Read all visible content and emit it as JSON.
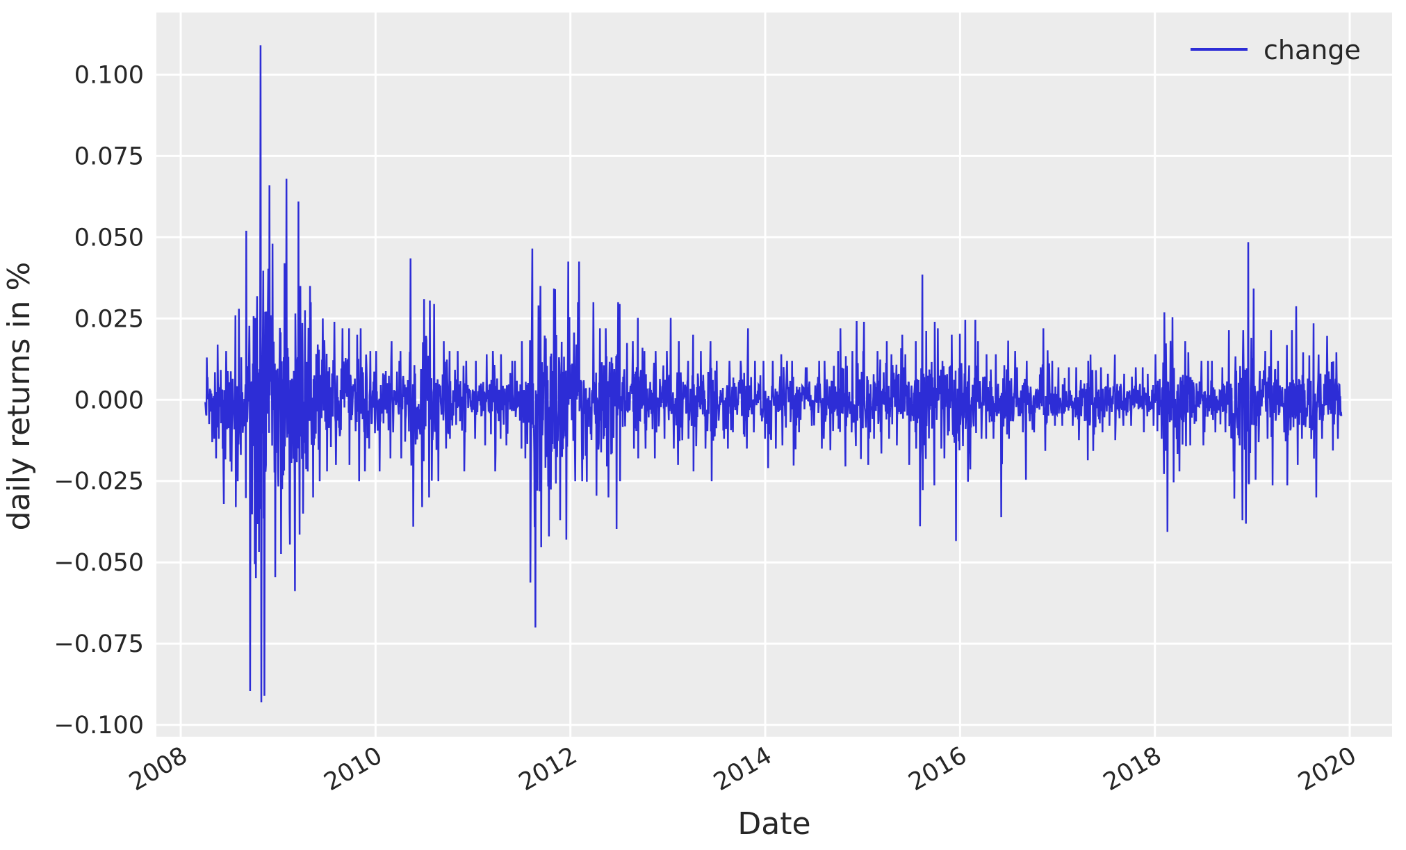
{
  "figure": {
    "background": "#ffffff"
  },
  "axes": {
    "background": "#ececec",
    "grid_color": "#ffffff",
    "text_color": "#262626",
    "xlabel": "Date",
    "ylabel": "daily returns in %",
    "x_tick_labels": [
      "2008",
      "2010",
      "2012",
      "2014",
      "2016",
      "2018",
      "2020"
    ],
    "y_tick_labels": [
      "0.100",
      "0.075",
      "0.050",
      "0.025",
      "0.000",
      "−0.025",
      "−0.050",
      "−0.075",
      "−0.100"
    ],
    "x_tick_rotation_deg": 30
  },
  "legend": {
    "label": "change",
    "line_color": "#2d2dd6",
    "position": "upper right"
  },
  "chart_data": {
    "type": "line",
    "series_name": "change",
    "title": "",
    "xlabel": "Date",
    "ylabel": "daily returns in %",
    "line_color": "#2d2dd6",
    "grid": true,
    "legend_position": "upper right",
    "x_tick_years": [
      2008,
      2010,
      2012,
      2014,
      2016,
      2018,
      2020
    ],
    "y_tick_values": [
      0.1,
      0.075,
      0.05,
      0.025,
      0.0,
      -0.025,
      -0.05,
      -0.075,
      -0.1
    ],
    "xlim_years": [
      2007.75,
      2020.435
    ],
    "ylim": [
      -0.1036,
      0.1191
    ],
    "data_start": "2008-04",
    "data_end": "2019-11",
    "observed_max": 0.109,
    "observed_min": -0.093,
    "monthly_envelope": {
      "note": "Per-month maximum and minimum daily return read from the plot; the series oscillates densely around 0 within this envelope.",
      "columns": [
        "month",
        "max_daily_return",
        "min_daily_return"
      ],
      "rows": [
        [
          "2008-04",
          0.013,
          -0.013
        ],
        [
          "2008-05",
          0.017,
          -0.018
        ],
        [
          "2008-06",
          0.015,
          -0.032
        ],
        [
          "2008-07",
          0.026,
          -0.033
        ],
        [
          "2008-08",
          0.028,
          -0.025
        ],
        [
          "2008-09",
          0.052,
          -0.0895
        ],
        [
          "2008-10",
          0.109,
          -0.093
        ],
        [
          "2008-11",
          0.066,
          -0.091
        ],
        [
          "2008-12",
          0.048,
          -0.0545
        ],
        [
          "2009-01",
          0.042,
          -0.0474
        ],
        [
          "2009-02",
          0.068,
          -0.0445
        ],
        [
          "2009-03",
          0.061,
          -0.0588
        ],
        [
          "2009-04",
          0.035,
          -0.035
        ],
        [
          "2009-05",
          0.03,
          -0.03
        ],
        [
          "2009-06",
          0.025,
          -0.025
        ],
        [
          "2009-07",
          0.024,
          -0.022
        ],
        [
          "2009-08",
          0.022,
          -0.02
        ],
        [
          "2009-09",
          0.022,
          -0.02
        ],
        [
          "2009-10",
          0.02,
          -0.025
        ],
        [
          "2009-11",
          0.022,
          -0.022
        ],
        [
          "2009-12",
          0.015,
          -0.015
        ],
        [
          "2010-01",
          0.015,
          -0.022
        ],
        [
          "2010-02",
          0.018,
          -0.018
        ],
        [
          "2010-03",
          0.012,
          -0.01
        ],
        [
          "2010-04",
          0.015,
          -0.018
        ],
        [
          "2010-05",
          0.0435,
          -0.039
        ],
        [
          "2010-06",
          0.031,
          -0.033
        ],
        [
          "2010-07",
          0.0305,
          -0.03
        ],
        [
          "2010-08",
          0.0295,
          -0.025
        ],
        [
          "2010-09",
          0.018,
          -0.015
        ],
        [
          "2010-10",
          0.015,
          -0.012
        ],
        [
          "2010-11",
          0.015,
          -0.022
        ],
        [
          "2010-12",
          0.012,
          -0.01
        ],
        [
          "2011-01",
          0.012,
          -0.012
        ],
        [
          "2011-02",
          0.014,
          -0.014
        ],
        [
          "2011-03",
          0.015,
          -0.022
        ],
        [
          "2011-04",
          0.014,
          -0.012
        ],
        [
          "2011-05",
          0.012,
          -0.014
        ],
        [
          "2011-06",
          0.012,
          -0.015
        ],
        [
          "2011-07",
          0.018,
          -0.018
        ],
        [
          "2011-08",
          0.0465,
          -0.07
        ],
        [
          "2011-09",
          0.035,
          -0.0453
        ],
        [
          "2011-10",
          0.0342,
          -0.042
        ],
        [
          "2011-11",
          0.034,
          -0.037
        ],
        [
          "2011-12",
          0.0425,
          -0.043
        ],
        [
          "2012-01",
          0.03,
          -0.025
        ],
        [
          "2012-02",
          0.0425,
          -0.025
        ],
        [
          "2012-03",
          0.03,
          -0.0252
        ],
        [
          "2012-04",
          0.022,
          -0.0295
        ],
        [
          "2012-05",
          0.022,
          -0.03
        ],
        [
          "2012-06",
          0.03,
          -0.0397
        ],
        [
          "2012-07",
          0.0295,
          -0.025
        ],
        [
          "2012-08",
          0.018,
          -0.015
        ],
        [
          "2012-09",
          0.0252,
          -0.018
        ],
        [
          "2012-10",
          0.015,
          -0.015
        ],
        [
          "2012-11",
          0.015,
          -0.018
        ],
        [
          "2012-12",
          0.015,
          -0.012
        ],
        [
          "2013-01",
          0.0252,
          -0.015
        ],
        [
          "2013-02",
          0.018,
          -0.02
        ],
        [
          "2013-03",
          0.012,
          -0.012
        ],
        [
          "2013-04",
          0.02,
          -0.022
        ],
        [
          "2013-05",
          0.015,
          -0.015
        ],
        [
          "2013-06",
          0.018,
          -0.025
        ],
        [
          "2013-07",
          0.012,
          -0.012
        ],
        [
          "2013-08",
          0.012,
          -0.015
        ],
        [
          "2013-09",
          0.012,
          -0.01
        ],
        [
          "2013-10",
          0.022,
          -0.015
        ],
        [
          "2013-11",
          0.012,
          -0.01
        ],
        [
          "2013-12",
          0.012,
          -0.012
        ],
        [
          "2014-01",
          0.012,
          -0.021
        ],
        [
          "2014-02",
          0.014,
          -0.015
        ],
        [
          "2014-03",
          0.012,
          -0.014
        ],
        [
          "2014-04",
          0.012,
          -0.0202
        ],
        [
          "2014-05",
          0.01,
          -0.01
        ],
        [
          "2014-06",
          0.01,
          -0.008
        ],
        [
          "2014-07",
          0.012,
          -0.015
        ],
        [
          "2014-08",
          0.012,
          -0.012
        ],
        [
          "2014-09",
          0.015,
          -0.0155
        ],
        [
          "2014-10",
          0.022,
          -0.0205
        ],
        [
          "2014-11",
          0.015,
          -0.01
        ],
        [
          "2014-12",
          0.0242,
          -0.0182
        ],
        [
          "2015-01",
          0.024,
          -0.02
        ],
        [
          "2015-02",
          0.015,
          -0.012
        ],
        [
          "2015-03",
          0.018,
          -0.0165
        ],
        [
          "2015-04",
          0.014,
          -0.012
        ],
        [
          "2015-05",
          0.02,
          -0.014
        ],
        [
          "2015-06",
          0.014,
          -0.02
        ],
        [
          "2015-07",
          0.018,
          -0.015
        ],
        [
          "2015-08",
          0.0385,
          -0.0389
        ],
        [
          "2015-09",
          0.024,
          -0.0263
        ],
        [
          "2015-10",
          0.022,
          -0.015
        ],
        [
          "2015-11",
          0.02,
          -0.018
        ],
        [
          "2015-12",
          0.0203,
          -0.0434
        ],
        [
          "2016-01",
          0.0246,
          -0.0252
        ],
        [
          "2016-02",
          0.0246,
          -0.0214
        ],
        [
          "2016-03",
          0.018,
          -0.012
        ],
        [
          "2016-04",
          0.014,
          -0.012
        ],
        [
          "2016-05",
          0.014,
          -0.012
        ],
        [
          "2016-06",
          0.0182,
          -0.0361
        ],
        [
          "2016-07",
          0.015,
          -0.012
        ],
        [
          "2016-08",
          0.01,
          -0.01
        ],
        [
          "2016-09",
          0.012,
          -0.0246
        ],
        [
          "2016-10",
          0.01,
          -0.01
        ],
        [
          "2016-11",
          0.022,
          -0.0157
        ],
        [
          "2016-12",
          0.012,
          -0.008
        ],
        [
          "2017-01",
          0.01,
          -0.008
        ],
        [
          "2017-02",
          0.01,
          -0.008
        ],
        [
          "2017-03",
          0.01,
          -0.0124
        ],
        [
          "2017-04",
          0.012,
          -0.0186
        ],
        [
          "2017-05",
          0.0139,
          -0.0157
        ],
        [
          "2017-06",
          0.01,
          -0.01
        ],
        [
          "2017-07",
          0.008,
          -0.008
        ],
        [
          "2017-08",
          0.0139,
          -0.0124
        ],
        [
          "2017-09",
          0.008,
          -0.008
        ],
        [
          "2017-10",
          0.01,
          -0.008
        ],
        [
          "2017-11",
          0.01,
          -0.01
        ],
        [
          "2017-12",
          0.008,
          -0.008
        ],
        [
          "2018-01",
          0.014,
          -0.012
        ],
        [
          "2018-02",
          0.0269,
          -0.0406
        ],
        [
          "2018-03",
          0.0254,
          -0.0254
        ],
        [
          "2018-04",
          0.018,
          -0.022
        ],
        [
          "2018-05",
          0.0146,
          -0.014
        ],
        [
          "2018-06",
          0.012,
          -0.014
        ],
        [
          "2018-07",
          0.012,
          -0.01
        ],
        [
          "2018-08",
          0.012,
          -0.01
        ],
        [
          "2018-09",
          0.01,
          -0.01
        ],
        [
          "2018-10",
          0.0214,
          -0.0304
        ],
        [
          "2018-11",
          0.0214,
          -0.037
        ],
        [
          "2018-12",
          0.0485,
          -0.0381
        ],
        [
          "2019-01",
          0.0342,
          -0.0246
        ],
        [
          "2019-02",
          0.015,
          -0.012
        ],
        [
          "2019-03",
          0.0214,
          -0.0263
        ],
        [
          "2019-04",
          0.012,
          -0.01
        ],
        [
          "2019-05",
          0.0214,
          -0.0263
        ],
        [
          "2019-06",
          0.0288,
          -0.02
        ],
        [
          "2019-07",
          0.0146,
          -0.012
        ],
        [
          "2019-08",
          0.0235,
          -0.03
        ],
        [
          "2019-09",
          0.0139,
          -0.012
        ],
        [
          "2019-10",
          0.0197,
          -0.0156
        ],
        [
          "2019-11",
          0.0146,
          -0.012
        ]
      ]
    },
    "notable_extremes": [
      {
        "date": "2008-10",
        "value": 0.109,
        "note": "tallest positive spike"
      },
      {
        "date": "2008-10",
        "value": 0.102,
        "note": "second tallest spike"
      },
      {
        "date": "2008-10",
        "value": -0.093,
        "note": "deepest negative spike"
      },
      {
        "date": "2009-02",
        "value": 0.068
      },
      {
        "date": "2010-05",
        "value": 0.0435
      },
      {
        "date": "2011-08",
        "value": 0.0465
      },
      {
        "date": "2011-08",
        "value": -0.07
      },
      {
        "date": "2015-08",
        "value": 0.0385
      },
      {
        "date": "2015-12",
        "value": -0.0434
      },
      {
        "date": "2016-06",
        "value": -0.0361
      },
      {
        "date": "2018-02",
        "value": -0.0406
      },
      {
        "date": "2018-12",
        "value": 0.0485
      }
    ]
  }
}
